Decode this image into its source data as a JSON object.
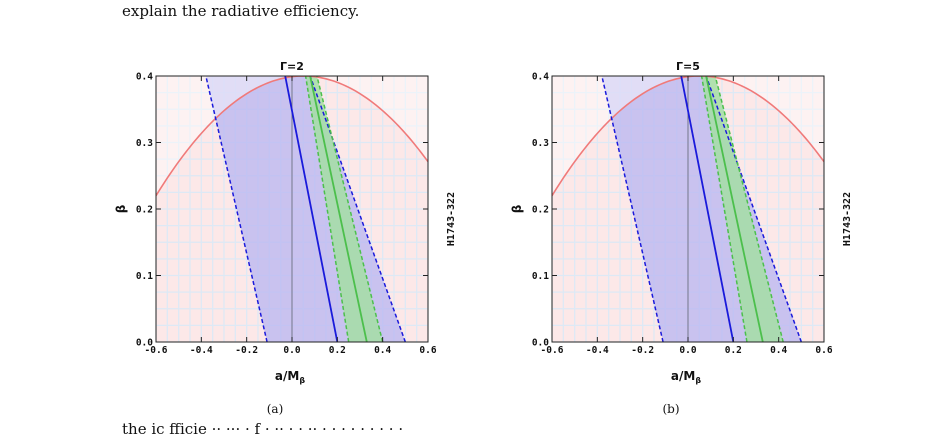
{
  "text": {
    "intro": "explain the radiative efficiency.",
    "cut_line": "                                                                   the  ic   fficie    ·· ···       ·  f     ·   ·· ·  ·  ·· · ·   ·       ·          ·    · ·    · ·"
  },
  "colors": {
    "background_pink": "#fce8e8",
    "grid": "#dde9f5",
    "disk_curve": "#f07a7a",
    "blue_band": "#b8b6f2",
    "blue_line": "#1a1adb",
    "green_band": "#a4dea4",
    "green_line": "#4cbf4c"
  },
  "chart_data": [
    {
      "type": "line",
      "panel_label": "(a)",
      "title": "Γ=2",
      "xlabel": "a/M",
      "xlabel_sub": "β",
      "ylabel": "β",
      "right_label": "H1743-322",
      "xlim": [
        -0.6,
        0.6
      ],
      "ylim": [
        0.0,
        0.4
      ],
      "xticks": [
        "-0.6",
        "-0.4",
        "-0.2",
        "0.0",
        "0.2",
        "0.4",
        "0.6"
      ],
      "yticks": [
        "0.0",
        "0.1",
        "0.2",
        "0.3",
        "0.4"
      ],
      "grid": true,
      "curve": {
        "peak": [
          0.05,
          0.4
        ],
        "edges": [
          [
            -0.6,
            0.22
          ],
          [
            0.6,
            0.22
          ]
        ]
      },
      "blue": {
        "solid": [
          [
            0.2,
            0.0
          ],
          [
            -0.03,
            0.4
          ]
        ],
        "dashed_left": [
          [
            -0.11,
            0.0
          ],
          [
            -0.38,
            0.4
          ]
        ],
        "dashed_right": [
          [
            0.5,
            0.0
          ],
          [
            0.08,
            0.4
          ]
        ]
      },
      "green": {
        "solid": [
          [
            0.33,
            0.0
          ],
          [
            0.08,
            0.4
          ]
        ],
        "dashed_left": [
          [
            0.25,
            0.0
          ],
          [
            0.06,
            0.4
          ]
        ],
        "dashed_right": [
          [
            0.4,
            0.0
          ],
          [
            0.11,
            0.4
          ]
        ]
      }
    },
    {
      "type": "line",
      "panel_label": "(b)",
      "title": "Γ=5",
      "xlabel": "a/M",
      "xlabel_sub": "β",
      "ylabel": "β",
      "right_label": "H1743-322",
      "xlim": [
        -0.6,
        0.6
      ],
      "ylim": [
        0.0,
        0.4
      ],
      "xticks": [
        "-0.6",
        "-0.4",
        "-0.2",
        "0.0",
        "0.2",
        "0.4",
        "0.6"
      ],
      "yticks": [
        "0.0",
        "0.1",
        "0.2",
        "0.3",
        "0.4"
      ],
      "grid": true,
      "curve": {
        "peak": [
          0.05,
          0.4
        ],
        "edges": [
          [
            -0.6,
            0.22
          ],
          [
            0.6,
            0.22
          ]
        ]
      },
      "blue": {
        "solid": [
          [
            0.2,
            0.0
          ],
          [
            -0.03,
            0.4
          ]
        ],
        "dashed_left": [
          [
            -0.11,
            0.0
          ],
          [
            -0.38,
            0.4
          ]
        ],
        "dashed_right": [
          [
            0.5,
            0.0
          ],
          [
            0.08,
            0.4
          ]
        ]
      },
      "green": {
        "solid": [
          [
            0.33,
            0.0
          ],
          [
            0.08,
            0.4
          ]
        ],
        "dashed_left": [
          [
            0.26,
            0.0
          ],
          [
            0.06,
            0.4
          ]
        ],
        "dashed_right": [
          [
            0.42,
            0.0
          ],
          [
            0.12,
            0.4
          ]
        ]
      }
    }
  ]
}
